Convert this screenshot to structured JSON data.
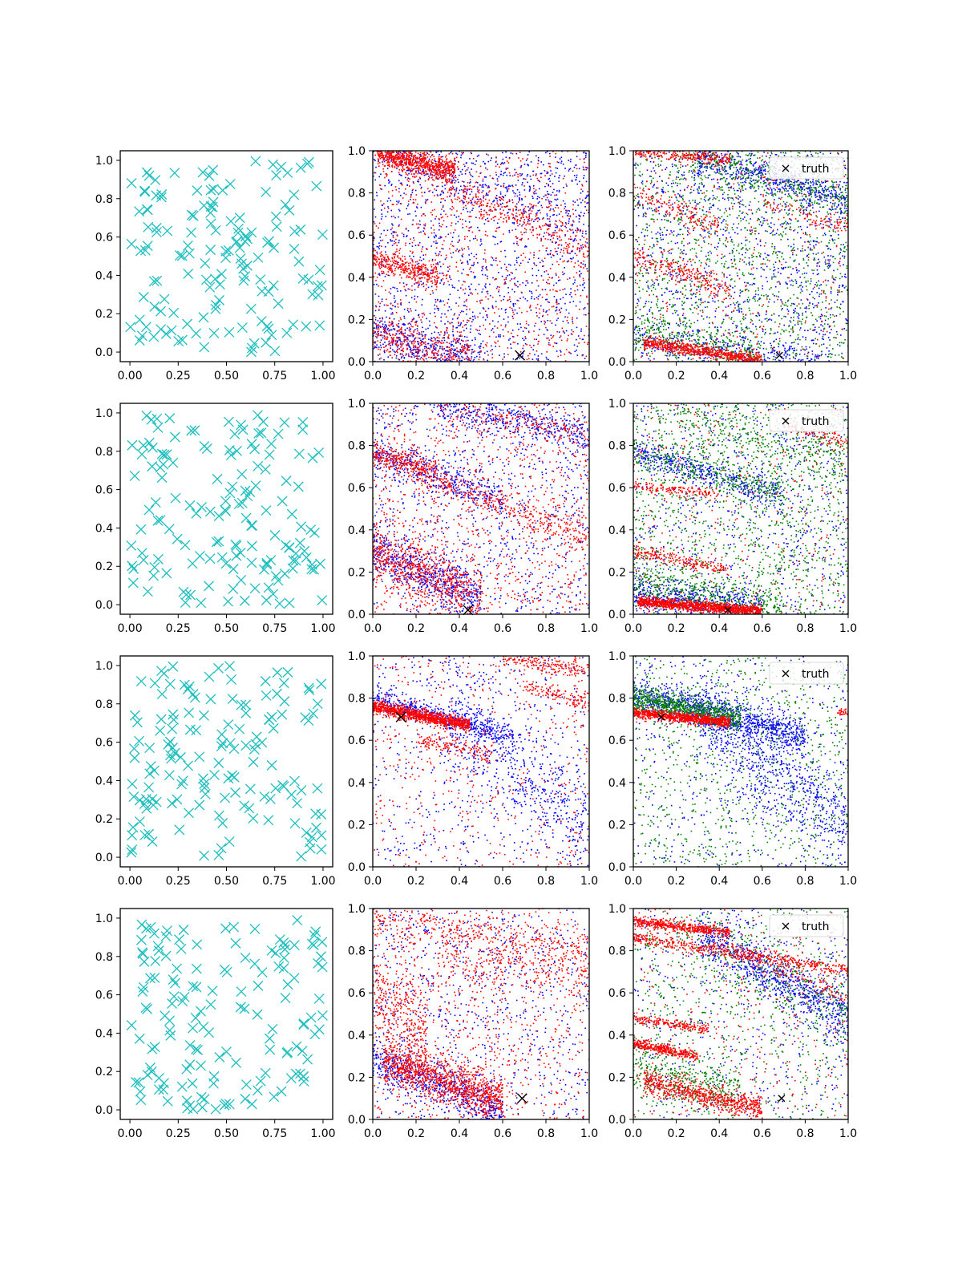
{
  "figure": {
    "rows": 4,
    "cols": 3
  },
  "colors": {
    "cyan": "#17becf",
    "cyan_marker": "#1fbfbf",
    "red": "#ff0000",
    "blue": "#0000ff",
    "green": "#008000",
    "truth": "#000000"
  },
  "chart_data": [
    {
      "row": 0,
      "col": 0,
      "type": "scatter",
      "marker": "x",
      "color": "cyan",
      "xlim": [
        -0.05,
        1.05
      ],
      "ylim": [
        -0.05,
        1.05
      ],
      "xticks": [
        "0.00",
        "0.25",
        "0.50",
        "0.75",
        "1.00"
      ],
      "yticks": [
        "0.0",
        "0.2",
        "0.4",
        "0.6",
        "0.8",
        "1.0"
      ],
      "n_points": 150,
      "seed": 11
    },
    {
      "row": 0,
      "col": 1,
      "type": "scatter",
      "xlim": [
        0,
        1
      ],
      "ylim": [
        0,
        1
      ],
      "xticks": [
        "0.0",
        "0.2",
        "0.4",
        "0.6",
        "0.8",
        "1.0"
      ],
      "yticks": [
        "0.0",
        "0.2",
        "0.4",
        "0.6",
        "0.8",
        "1.0"
      ],
      "truth": [
        0.68,
        0.03
      ],
      "bands": [
        {
          "color": "red",
          "x0": 0.02,
          "x1": 0.38,
          "y0": 0.99,
          "slope": -0.25,
          "width": 0.03,
          "n": 800
        },
        {
          "color": "red",
          "x0": 0.0,
          "x1": 0.3,
          "y0": 0.48,
          "slope": -0.25,
          "width": 0.03,
          "n": 350
        },
        {
          "color": "red",
          "x0": 0.3,
          "x1": 1.0,
          "y0": 0.85,
          "slope": -0.45,
          "width": 0.05,
          "n": 300
        },
        {
          "color": "red",
          "x0": 0.0,
          "x1": 0.45,
          "y0": 0.13,
          "slope": -0.25,
          "width": 0.05,
          "n": 350
        },
        {
          "color": "blue",
          "x0": 0.0,
          "x1": 0.5,
          "y0": 0.15,
          "slope": -0.3,
          "width": 0.05,
          "n": 400
        },
        {
          "color": "blue",
          "x0": 0.1,
          "x1": 1.0,
          "y0": 0.98,
          "slope": -0.35,
          "width": 0.07,
          "n": 250
        }
      ],
      "uniform": [
        {
          "color": "blue",
          "n": 1300
        },
        {
          "color": "red",
          "n": 900
        }
      ]
    },
    {
      "row": 0,
      "col": 2,
      "type": "scatter",
      "xlim": [
        0,
        1
      ],
      "ylim": [
        0,
        1
      ],
      "xticks": [
        "0.0",
        "0.2",
        "0.4",
        "0.6",
        "0.8",
        "1.0"
      ],
      "yticks": [
        "0.0",
        "0.2",
        "0.4",
        "0.6",
        "0.8",
        "1.0"
      ],
      "truth": [
        0.68,
        0.03
      ],
      "legend": "truth",
      "bands": [
        {
          "color": "red",
          "x0": 0.05,
          "x1": 0.6,
          "y0": 0.09,
          "slope": -0.15,
          "width": 0.015,
          "n": 700
        },
        {
          "color": "red",
          "x0": 0.0,
          "x1": 0.45,
          "y0": 1.0,
          "slope": -0.1,
          "width": 0.015,
          "n": 250
        },
        {
          "color": "red",
          "x0": 0.0,
          "x1": 0.45,
          "y0": 0.5,
          "slope": -0.35,
          "width": 0.03,
          "n": 250
        },
        {
          "color": "red",
          "x0": 0.0,
          "x1": 0.4,
          "y0": 0.8,
          "slope": -0.4,
          "width": 0.03,
          "n": 150
        },
        {
          "color": "red",
          "x0": 0.6,
          "x1": 1.0,
          "y0": 0.75,
          "slope": -0.3,
          "width": 0.02,
          "n": 100
        },
        {
          "color": "blue",
          "x0": 0.3,
          "x1": 1.0,
          "y0": 0.97,
          "slope": -0.3,
          "width": 0.04,
          "n": 500
        },
        {
          "color": "blue",
          "x0": 0.0,
          "x1": 0.9,
          "y0": 0.1,
          "slope": -0.1,
          "width": 0.04,
          "n": 250
        },
        {
          "color": "green",
          "x0": 0.2,
          "x1": 1.0,
          "y0": 1.0,
          "slope": -0.3,
          "width": 0.05,
          "n": 350
        },
        {
          "color": "green",
          "x0": 0.0,
          "x1": 0.6,
          "y0": 0.15,
          "slope": -0.2,
          "width": 0.05,
          "n": 300
        }
      ],
      "uniform": [
        {
          "color": "blue",
          "n": 1200
        },
        {
          "color": "green",
          "n": 1300
        },
        {
          "color": "red",
          "n": 350
        }
      ]
    },
    {
      "row": 1,
      "col": 0,
      "type": "scatter",
      "marker": "x",
      "color": "cyan",
      "xlim": [
        -0.05,
        1.05
      ],
      "ylim": [
        -0.05,
        1.05
      ],
      "xticks": [
        "0.00",
        "0.25",
        "0.50",
        "0.75",
        "1.00"
      ],
      "yticks": [
        "0.0",
        "0.2",
        "0.4",
        "0.6",
        "0.8",
        "1.0"
      ],
      "n_points": 150,
      "seed": 23
    },
    {
      "row": 1,
      "col": 1,
      "type": "scatter",
      "xlim": [
        0,
        1
      ],
      "ylim": [
        0,
        1
      ],
      "xticks": [
        "0.0",
        "0.2",
        "0.4",
        "0.6",
        "0.8",
        "1.0"
      ],
      "yticks": [
        "0.0",
        "0.2",
        "0.4",
        "0.6",
        "0.8",
        "1.0"
      ],
      "truth": [
        0.44,
        0.02
      ],
      "bands": [
        {
          "color": "red",
          "x0": 0.0,
          "x1": 0.5,
          "y0": 0.3,
          "slope": -0.45,
          "width": 0.07,
          "n": 700
        },
        {
          "color": "blue",
          "x0": 0.0,
          "x1": 0.5,
          "y0": 0.3,
          "slope": -0.45,
          "width": 0.06,
          "n": 550
        },
        {
          "color": "red",
          "x0": 0.0,
          "x1": 0.3,
          "y0": 0.76,
          "slope": -0.3,
          "width": 0.03,
          "n": 300
        },
        {
          "color": "blue",
          "x0": 0.0,
          "x1": 0.6,
          "y0": 0.76,
          "slope": -0.35,
          "width": 0.04,
          "n": 350
        },
        {
          "color": "red",
          "x0": 0.2,
          "x1": 1.0,
          "y0": 0.65,
          "slope": -0.35,
          "width": 0.04,
          "n": 350
        },
        {
          "color": "blue",
          "x0": 0.3,
          "x1": 1.0,
          "y0": 0.99,
          "slope": -0.2,
          "width": 0.04,
          "n": 400
        },
        {
          "color": "red",
          "x0": 0.3,
          "x1": 1.0,
          "y0": 0.99,
          "slope": -0.2,
          "width": 0.03,
          "n": 150
        }
      ],
      "uniform": [
        {
          "color": "blue",
          "n": 900
        },
        {
          "color": "red",
          "n": 1000
        }
      ]
    },
    {
      "row": 1,
      "col": 2,
      "type": "scatter",
      "xlim": [
        0,
        1
      ],
      "ylim": [
        0,
        1
      ],
      "xticks": [
        "0.0",
        "0.2",
        "0.4",
        "0.6",
        "0.8",
        "1.0"
      ],
      "yticks": [
        "0.0",
        "0.2",
        "0.4",
        "0.6",
        "0.8",
        "1.0"
      ],
      "truth": [
        0.44,
        0.02
      ],
      "legend": "truth",
      "bands": [
        {
          "color": "red",
          "x0": 0.02,
          "x1": 0.6,
          "y0": 0.06,
          "slope": -0.08,
          "width": 0.012,
          "n": 1200
        },
        {
          "color": "blue",
          "x0": 0.0,
          "x1": 0.6,
          "y0": 0.1,
          "slope": -0.12,
          "width": 0.04,
          "n": 500
        },
        {
          "color": "green",
          "x0": 0.0,
          "x1": 0.7,
          "y0": 0.16,
          "slope": -0.2,
          "width": 0.05,
          "n": 400
        },
        {
          "color": "red",
          "x0": 0.0,
          "x1": 0.45,
          "y0": 0.3,
          "slope": -0.2,
          "width": 0.015,
          "n": 200
        },
        {
          "color": "red",
          "x0": 0.0,
          "x1": 0.4,
          "y0": 0.61,
          "slope": -0.1,
          "width": 0.015,
          "n": 150
        },
        {
          "color": "blue",
          "x0": 0.0,
          "x1": 0.7,
          "y0": 0.77,
          "slope": -0.3,
          "width": 0.035,
          "n": 450
        },
        {
          "color": "green",
          "x0": 0.0,
          "x1": 0.7,
          "y0": 0.78,
          "slope": -0.3,
          "width": 0.04,
          "n": 300
        },
        {
          "color": "red",
          "x0": 0.7,
          "x1": 1.0,
          "y0": 0.9,
          "slope": -0.3,
          "width": 0.02,
          "n": 100
        },
        {
          "color": "green",
          "x0": 0.2,
          "x1": 1.0,
          "y0": 0.95,
          "slope": -0.3,
          "width": 0.06,
          "n": 250
        }
      ],
      "uniform": [
        {
          "color": "blue",
          "n": 700
        },
        {
          "color": "green",
          "n": 1400
        },
        {
          "color": "red",
          "n": 300
        }
      ]
    },
    {
      "row": 2,
      "col": 0,
      "type": "scatter",
      "marker": "x",
      "color": "cyan",
      "xlim": [
        -0.05,
        1.05
      ],
      "ylim": [
        -0.05,
        1.05
      ],
      "xticks": [
        "0.00",
        "0.25",
        "0.50",
        "0.75",
        "1.00"
      ],
      "yticks": [
        "0.0",
        "0.2",
        "0.4",
        "0.6",
        "0.8",
        "1.0"
      ],
      "n_points": 150,
      "seed": 37
    },
    {
      "row": 2,
      "col": 1,
      "type": "scatter",
      "xlim": [
        0,
        1
      ],
      "ylim": [
        0,
        1
      ],
      "xticks": [
        "0.0",
        "0.2",
        "0.4",
        "0.6",
        "0.8",
        "1.0"
      ],
      "yticks": [
        "0.0",
        "0.2",
        "0.4",
        "0.6",
        "0.8",
        "1.0"
      ],
      "truth": [
        0.13,
        0.71
      ],
      "bands": [
        {
          "color": "red",
          "x0": 0.0,
          "x1": 0.45,
          "y0": 0.76,
          "slope": -0.2,
          "width": 0.015,
          "n": 1100
        },
        {
          "color": "blue",
          "x0": 0.0,
          "x1": 0.65,
          "y0": 0.8,
          "slope": -0.28,
          "width": 0.025,
          "n": 500
        },
        {
          "color": "red",
          "x0": 0.2,
          "x1": 0.55,
          "y0": 0.6,
          "slope": -0.2,
          "width": 0.02,
          "n": 150
        },
        {
          "color": "red",
          "x0": 0.6,
          "x1": 1.0,
          "y0": 0.99,
          "slope": -0.15,
          "width": 0.02,
          "n": 180
        },
        {
          "color": "red",
          "x0": 0.7,
          "x1": 1.0,
          "y0": 0.86,
          "slope": -0.3,
          "width": 0.02,
          "n": 120
        },
        {
          "color": "blue",
          "x0": 0.35,
          "x1": 1.0,
          "y0": 0.75,
          "slope": -0.9,
          "width": 0.12,
          "n": 500
        }
      ],
      "uniform": [
        {
          "color": "blue",
          "n": 600
        },
        {
          "color": "red",
          "n": 500
        }
      ]
    },
    {
      "row": 2,
      "col": 2,
      "type": "scatter",
      "xlim": [
        0,
        1
      ],
      "ylim": [
        0,
        1
      ],
      "xticks": [
        "0.0",
        "0.2",
        "0.4",
        "0.6",
        "0.8",
        "1.0"
      ],
      "yticks": [
        "0.0",
        "0.2",
        "0.4",
        "0.6",
        "0.8",
        "1.0"
      ],
      "truth": [
        0.13,
        0.71
      ],
      "legend": "truth",
      "bands": [
        {
          "color": "red",
          "x0": 0.0,
          "x1": 0.45,
          "y0": 0.73,
          "slope": -0.1,
          "width": 0.012,
          "n": 900
        },
        {
          "color": "green",
          "x0": 0.0,
          "x1": 0.5,
          "y0": 0.8,
          "slope": -0.2,
          "width": 0.03,
          "n": 800
        },
        {
          "color": "blue",
          "x0": 0.0,
          "x1": 0.8,
          "y0": 0.82,
          "slope": -0.25,
          "width": 0.04,
          "n": 900
        },
        {
          "color": "blue",
          "x0": 0.3,
          "x1": 1.0,
          "y0": 0.75,
          "slope": -0.8,
          "width": 0.12,
          "n": 800
        },
        {
          "color": "red",
          "x0": 0.95,
          "x1": 1.0,
          "y0": 0.73,
          "slope": 0.0,
          "width": 0.01,
          "n": 30
        }
      ],
      "uniform": [
        {
          "color": "blue",
          "n": 500
        },
        {
          "color": "green",
          "n": 900
        }
      ]
    },
    {
      "row": 3,
      "col": 0,
      "type": "scatter",
      "marker": "x",
      "color": "cyan",
      "xlim": [
        -0.05,
        1.05
      ],
      "ylim": [
        -0.05,
        1.05
      ],
      "xticks": [
        "0.00",
        "0.25",
        "0.50",
        "0.75",
        "1.00"
      ],
      "yticks": [
        "0.0",
        "0.2",
        "0.4",
        "0.6",
        "0.8",
        "1.0"
      ],
      "n_points": 150,
      "seed": 53
    },
    {
      "row": 3,
      "col": 1,
      "type": "scatter",
      "xlim": [
        0,
        1
      ],
      "ylim": [
        0,
        1
      ],
      "xticks": [
        "0.0",
        "0.2",
        "0.4",
        "0.6",
        "0.8",
        "1.0"
      ],
      "yticks": [
        "0.0",
        "0.2",
        "0.4",
        "0.6",
        "0.8",
        "1.0"
      ],
      "truth": [
        0.69,
        0.1
      ],
      "bands": [
        {
          "color": "red",
          "x0": 0.05,
          "x1": 0.6,
          "y0": 0.28,
          "slope": -0.35,
          "width": 0.05,
          "n": 1100
        },
        {
          "color": "blue",
          "x0": 0.0,
          "x1": 0.6,
          "y0": 0.28,
          "slope": -0.4,
          "width": 0.05,
          "n": 600
        },
        {
          "color": "red",
          "x0": 0.0,
          "x1": 0.25,
          "y0": 0.62,
          "slope": -0.9,
          "width": 0.1,
          "n": 300
        },
        {
          "color": "red",
          "x0": 0.0,
          "x1": 1.0,
          "y0": 0.95,
          "slope": -0.15,
          "width": 0.05,
          "n": 350
        },
        {
          "color": "red",
          "x0": 0.3,
          "x1": 1.0,
          "y0": 0.75,
          "slope": -0.1,
          "width": 0.05,
          "n": 200
        }
      ],
      "uniform": [
        {
          "color": "blue",
          "n": 800
        },
        {
          "color": "red",
          "n": 900
        }
      ]
    },
    {
      "row": 3,
      "col": 2,
      "type": "scatter",
      "xlim": [
        0,
        1
      ],
      "ylim": [
        0,
        1
      ],
      "xticks": [
        "0.0",
        "0.2",
        "0.4",
        "0.6",
        "0.8",
        "1.0"
      ],
      "yticks": [
        "0.0",
        "0.2",
        "0.4",
        "0.6",
        "0.8",
        "1.0"
      ],
      "truth": [
        0.69,
        0.1
      ],
      "legend": "truth",
      "bands": [
        {
          "color": "red",
          "x0": 0.0,
          "x1": 0.45,
          "y0": 0.94,
          "slope": -0.12,
          "width": 0.012,
          "n": 500
        },
        {
          "color": "red",
          "x0": 0.0,
          "x1": 1.0,
          "y0": 0.86,
          "slope": -0.15,
          "width": 0.015,
          "n": 500
        },
        {
          "color": "red",
          "x0": 0.0,
          "x1": 0.3,
          "y0": 0.36,
          "slope": -0.2,
          "width": 0.012,
          "n": 350
        },
        {
          "color": "red",
          "x0": 0.0,
          "x1": 0.35,
          "y0": 0.48,
          "slope": -0.15,
          "width": 0.012,
          "n": 200
        },
        {
          "color": "red",
          "x0": 0.05,
          "x1": 0.6,
          "y0": 0.18,
          "slope": -0.25,
          "width": 0.03,
          "n": 700
        },
        {
          "color": "red",
          "x0": 0.4,
          "x1": 1.0,
          "y0": 0.82,
          "slope": -0.4,
          "width": 0.02,
          "n": 150
        },
        {
          "color": "blue",
          "x0": 0.3,
          "x1": 1.0,
          "y0": 0.88,
          "slope": -0.55,
          "width": 0.06,
          "n": 800
        },
        {
          "color": "green",
          "x0": 0.0,
          "x1": 0.5,
          "y0": 0.25,
          "slope": -0.25,
          "width": 0.06,
          "n": 350
        },
        {
          "color": "green",
          "x0": 0.2,
          "x1": 1.0,
          "y0": 0.9,
          "slope": -0.5,
          "width": 0.1,
          "n": 300
        }
      ],
      "uniform": [
        {
          "color": "blue",
          "n": 500
        },
        {
          "color": "green",
          "n": 700
        },
        {
          "color": "red",
          "n": 350
        }
      ]
    }
  ]
}
